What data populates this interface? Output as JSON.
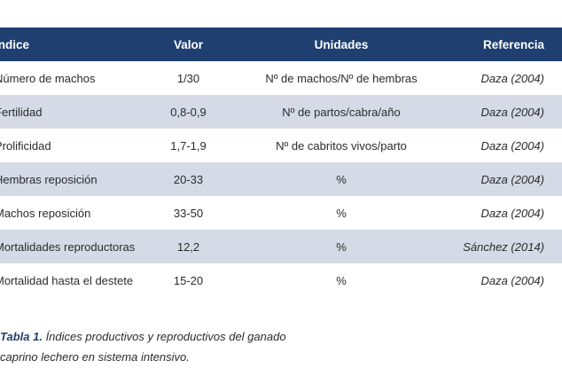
{
  "table": {
    "headers": [
      "Índice",
      "Valor",
      "Unidades",
      "Referencia"
    ],
    "rows": [
      [
        "Número de machos",
        "1/30",
        "Nº de machos/Nº de hembras",
        "Daza (2004)"
      ],
      [
        "Fertilidad",
        "0,8-0,9",
        "Nº de partos/cabra/año",
        "Daza (2004)"
      ],
      [
        "Prolificidad",
        "1,7-1,9",
        "Nº de cabritos vivos/parto",
        "Daza (2004)"
      ],
      [
        "Hembras reposición",
        "20-33",
        "%",
        "Daza (2004)"
      ],
      [
        "Machos reposición",
        "33-50",
        "%",
        "Daza (2004)"
      ],
      [
        "Mortalidades reproductoras",
        "12,2",
        "%",
        "Sánchez (2014)"
      ],
      [
        "Mortalidad hasta el destete",
        "15-20",
        "%",
        "Daza (2004)"
      ]
    ]
  },
  "caption": {
    "label": "Tabla 1.",
    "text": "Índices productivos y reproductivos del ganado caprino lechero en sistema intensivo."
  },
  "colors": {
    "header_bg": "#1f3f70",
    "shaded_row_bg": "#d4dbe6"
  }
}
